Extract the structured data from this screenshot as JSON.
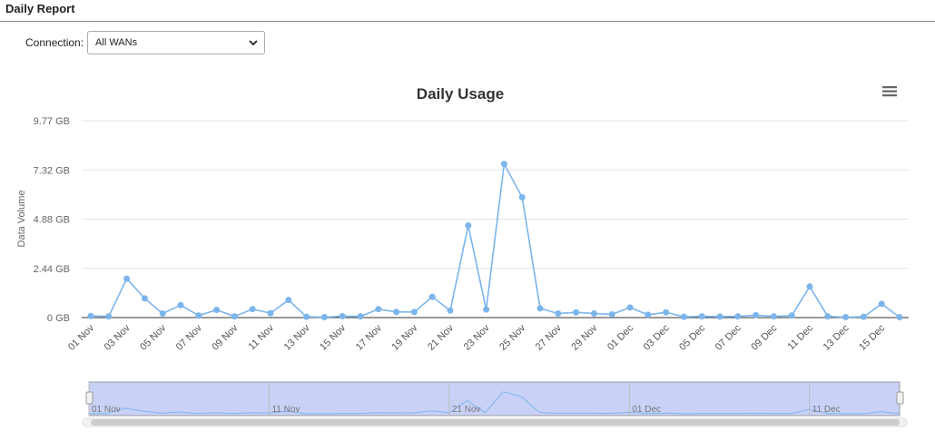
{
  "header": {
    "title": "Daily Report"
  },
  "connection": {
    "label": "Connection:",
    "selected": "All WANs",
    "icon": "chevron-down-icon"
  },
  "menu_icon": "hamburger-menu-icon",
  "colors": {
    "series": "#7cb5ec",
    "navigator_fill": "#c9d1f7",
    "grid": "#e6e6e6",
    "axis": "#333333"
  },
  "chart_data": {
    "type": "line",
    "title": "Daily Usage",
    "ylabel": "Data Volume",
    "y_ticks": [
      "0 GB",
      "2.44 GB",
      "4.88 GB",
      "7.32 GB",
      "9.77 GB"
    ],
    "ylim": [
      0,
      9.77
    ],
    "x_tick_labels": [
      "01 Nov",
      "03 Nov",
      "05 Nov",
      "07 Nov",
      "09 Nov",
      "11 Nov",
      "13 Nov",
      "15 Nov",
      "17 Nov",
      "19 Nov",
      "21 Nov",
      "23 Nov",
      "25 Nov",
      "27 Nov",
      "29 Nov",
      "01 Dec",
      "03 Dec",
      "05 Dec",
      "07 Dec",
      "09 Dec",
      "11 Dec",
      "13 Dec",
      "15 Dec"
    ],
    "x": [
      "01 Nov",
      "02 Nov",
      "03 Nov",
      "04 Nov",
      "05 Nov",
      "06 Nov",
      "07 Nov",
      "08 Nov",
      "09 Nov",
      "10 Nov",
      "11 Nov",
      "12 Nov",
      "13 Nov",
      "14 Nov",
      "15 Nov",
      "16 Nov",
      "17 Nov",
      "18 Nov",
      "19 Nov",
      "20 Nov",
      "21 Nov",
      "22 Nov",
      "23 Nov",
      "24 Nov",
      "25 Nov",
      "26 Nov",
      "27 Nov",
      "28 Nov",
      "29 Nov",
      "30 Nov",
      "01 Dec",
      "02 Dec",
      "03 Dec",
      "04 Dec",
      "05 Dec",
      "06 Dec",
      "07 Dec",
      "08 Dec",
      "09 Dec",
      "10 Dec",
      "11 Dec",
      "12 Dec",
      "13 Dec",
      "14 Dec",
      "15 Dec",
      "16 Dec"
    ],
    "values": [
      0.08,
      0.06,
      1.93,
      0.95,
      0.2,
      0.62,
      0.1,
      0.38,
      0.06,
      0.42,
      0.22,
      0.87,
      0.04,
      0.02,
      0.07,
      0.06,
      0.42,
      0.28,
      0.28,
      1.03,
      0.35,
      4.57,
      0.4,
      7.62,
      5.97,
      0.46,
      0.2,
      0.26,
      0.2,
      0.16,
      0.5,
      0.14,
      0.26,
      0.04,
      0.06,
      0.05,
      0.06,
      0.12,
      0.06,
      0.1,
      1.54,
      0.06,
      0.02,
      0.04,
      0.68,
      0.02
    ],
    "grid": true,
    "legend": "none",
    "navigator": {
      "labels": [
        "01 Nov",
        "11 Nov",
        "21 Nov",
        "01 Dec",
        "11 Dec"
      ]
    }
  }
}
